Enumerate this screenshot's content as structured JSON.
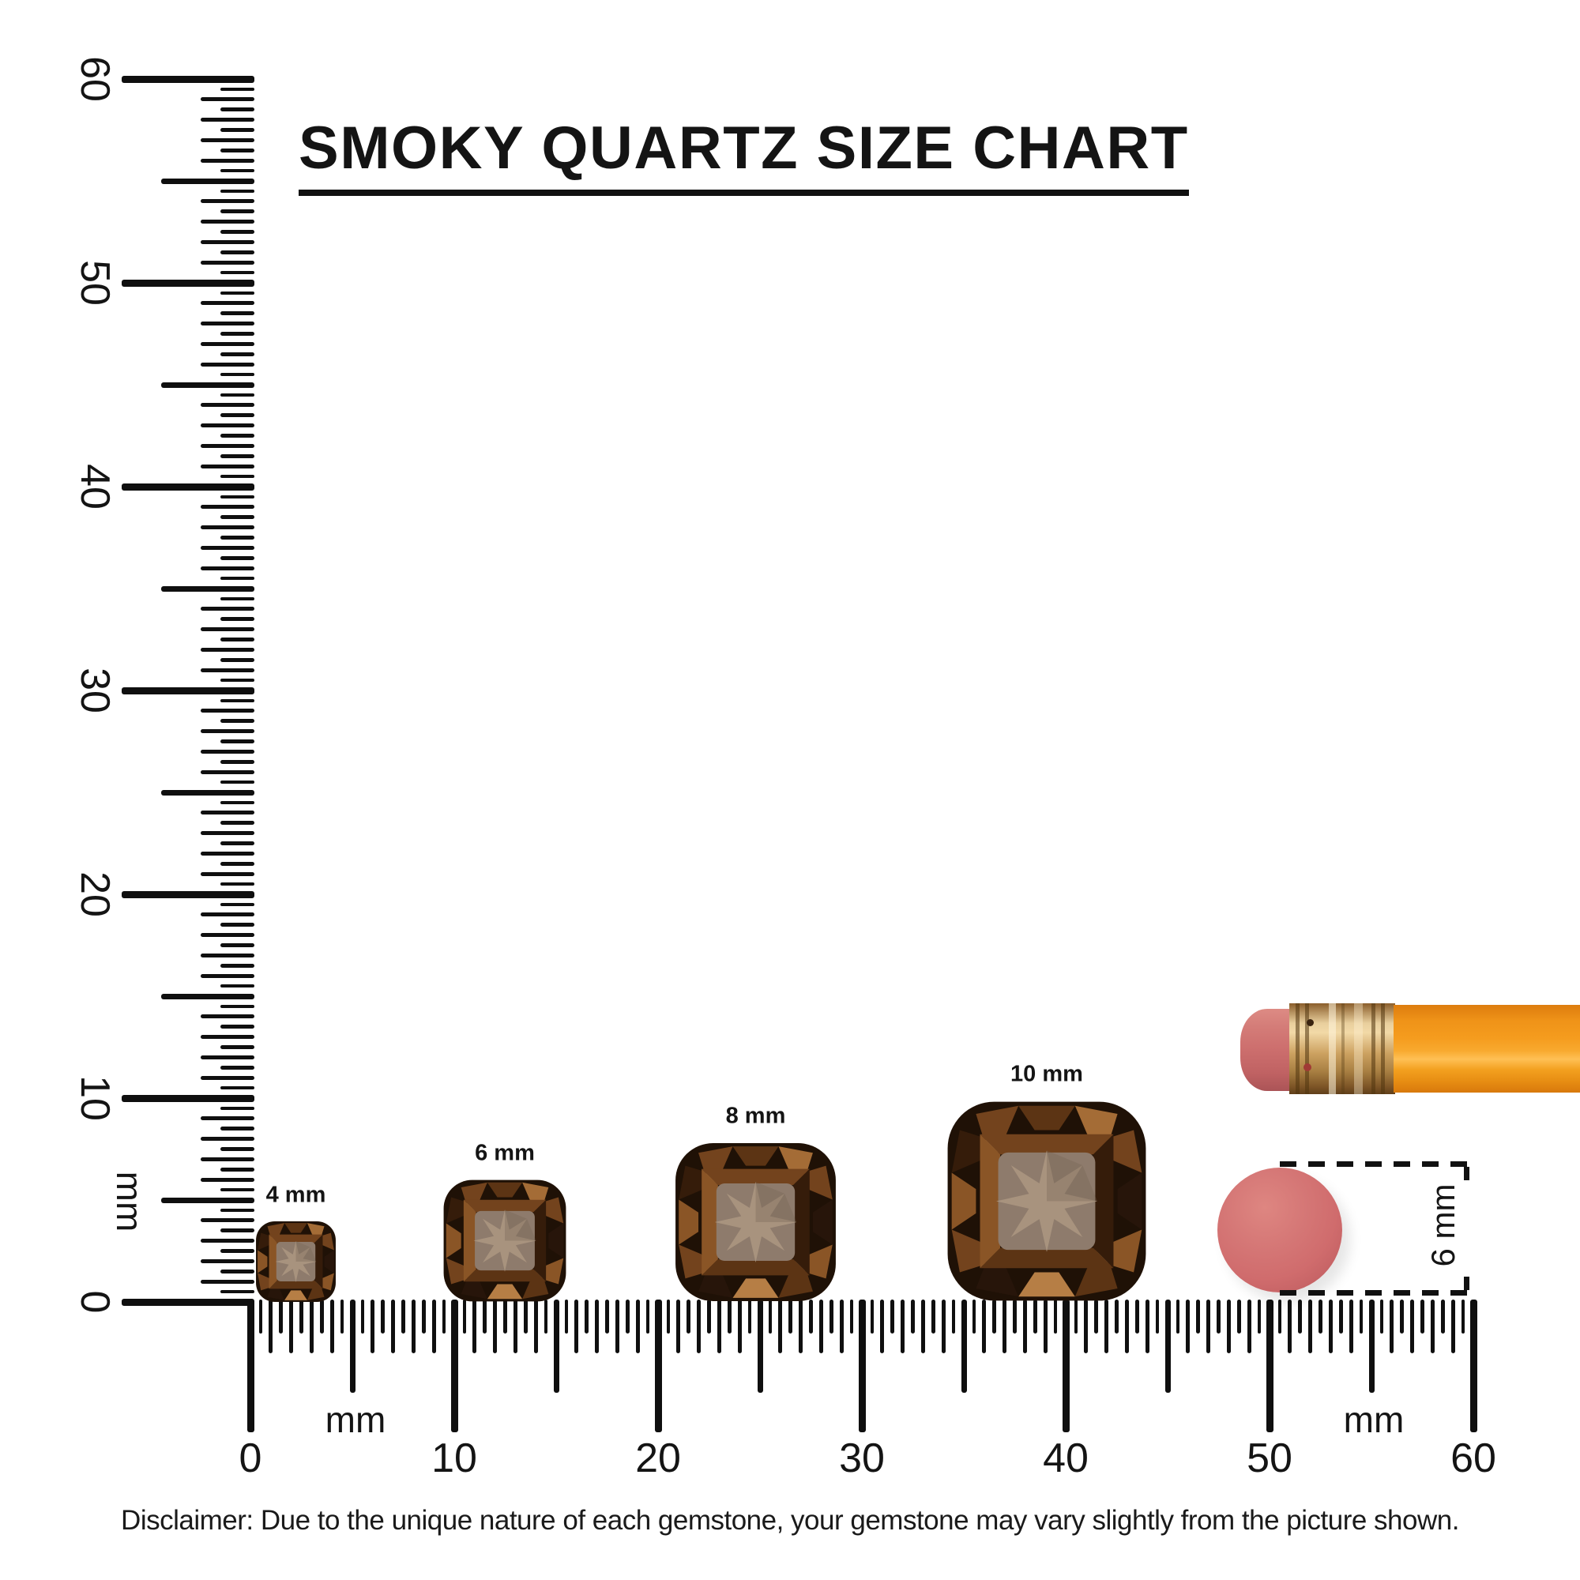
{
  "title": "SMOKY QUARTZ SIZE CHART",
  "disclaimer": "Disclaimer: Due to the unique nature of each gemstone, your gemstone may vary slightly from the picture shown.",
  "rulers": {
    "unit": "mm",
    "min_mm": 0,
    "max_mm": 60,
    "tick_step_mm": 0.5,
    "number_step_mm": 10,
    "vertical": {
      "numbers": [
        "60",
        "50",
        "40",
        "30",
        "20",
        "10",
        "0"
      ],
      "unit_label": "mm"
    },
    "horizontal": {
      "numbers": [
        "0",
        "10",
        "20",
        "30",
        "40",
        "50",
        "60"
      ],
      "unit_label_left": "mm",
      "unit_label_right": "mm"
    }
  },
  "gems": [
    {
      "label": "4 mm",
      "size_mm": 4
    },
    {
      "label": "6 mm",
      "size_mm": 6
    },
    {
      "label": "8 mm",
      "size_mm": 8
    },
    {
      "label": "10 mm",
      "size_mm": 10
    }
  ],
  "eraser_measure": {
    "label": "6 mm"
  },
  "colors": {
    "ink": "#111111",
    "gem": {
      "base": "#1f1106",
      "d1": "#351c0a",
      "d2": "#27150a",
      "m1": "#5c3414",
      "m2": "#73431d",
      "m3": "#8a5526",
      "l1": "#a46c36",
      "l2": "#b67e45",
      "hi": "#c99a62",
      "table": "#8e7b6c",
      "star": "#a8937e",
      "star_shade": "#6f5f50"
    },
    "pencil": {
      "eraser": "#cd6f6e",
      "ferrule": "#cda261",
      "body": "#f59c1e"
    },
    "eraser_dot": "#d06c6d"
  }
}
